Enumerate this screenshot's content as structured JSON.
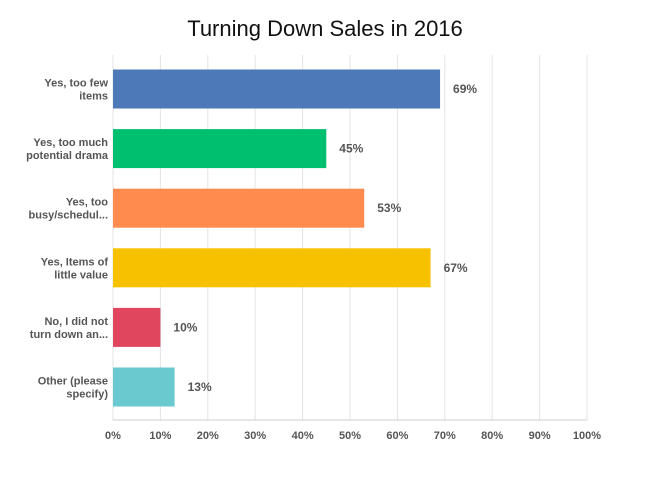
{
  "chart_data": {
    "type": "bar",
    "orientation": "horizontal",
    "title": "Turning Down Sales in 2016",
    "xlabel": "",
    "ylabel": "",
    "xlim": [
      0,
      100
    ],
    "x_ticks": [
      "0%",
      "10%",
      "20%",
      "30%",
      "40%",
      "50%",
      "60%",
      "70%",
      "80%",
      "90%",
      "100%"
    ],
    "grid": true,
    "legend": "none",
    "categories": [
      [
        "Yes, too few",
        "items"
      ],
      [
        "Yes, too much",
        "potential drama"
      ],
      [
        "Yes, too",
        "busy/schedul..."
      ],
      [
        "Yes, Items of",
        "little value"
      ],
      [
        "No, I did not",
        "turn down an..."
      ],
      [
        "Other (please",
        "specify)"
      ]
    ],
    "values": [
      69,
      45,
      53,
      67,
      10,
      13
    ],
    "value_labels": [
      "69%",
      "45%",
      "53%",
      "67%",
      "10%",
      "13%"
    ],
    "colors": [
      "#4e79b8",
      "#00bf6f",
      "#ff8b4f",
      "#f8c100",
      "#e0475e",
      "#6ac8cf"
    ]
  }
}
